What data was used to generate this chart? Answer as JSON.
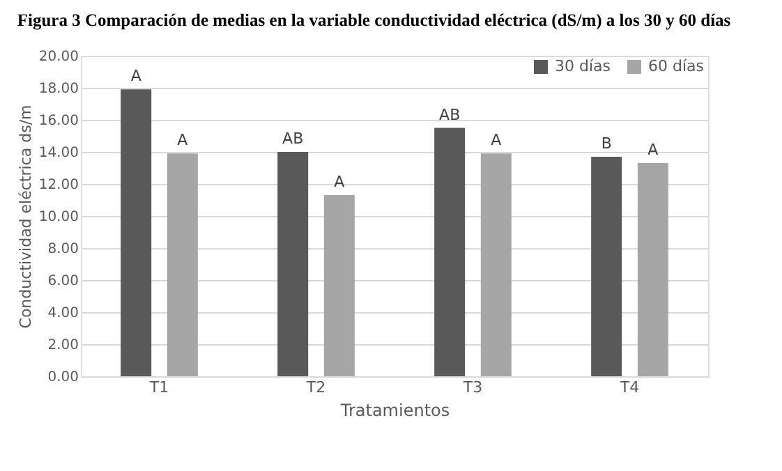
{
  "chart_data": {
    "type": "bar",
    "title": "Figura 3 Comparación de medias en la variable conductividad eléctrica (dS/m) a los 30 y 60 días",
    "xlabel": "Tratamientos",
    "ylabel": "Conductividad eléctrica ds/m",
    "categories": [
      "T1",
      "T2",
      "T3",
      "T4"
    ],
    "series": [
      {
        "name": "30 días",
        "color": "#595959",
        "values": [
          17.9,
          14.0,
          15.5,
          13.7
        ],
        "value_labels": [
          "A",
          "AB",
          "AB",
          "B"
        ]
      },
      {
        "name": "60 días",
        "color": "#a6a6a6",
        "values": [
          13.9,
          11.3,
          13.9,
          13.3
        ],
        "value_labels": [
          "A",
          "A",
          "A",
          "A"
        ]
      }
    ],
    "ylim": [
      0,
      20
    ],
    "yticks": [
      {
        "value": 0,
        "label": "0.00"
      },
      {
        "value": 2,
        "label": "2.00"
      },
      {
        "value": 4,
        "label": "4.00"
      },
      {
        "value": 6,
        "label": "6.00"
      },
      {
        "value": 8,
        "label": "8.00"
      },
      {
        "value": 10,
        "label": "10.00"
      },
      {
        "value": 12,
        "label": "12.00"
      },
      {
        "value": 14,
        "label": "14.00"
      },
      {
        "value": 16,
        "label": "16.00"
      },
      {
        "value": 18,
        "label": "18.00"
      },
      {
        "value": 20,
        "label": "20.00"
      }
    ],
    "grid": "y",
    "legend": "top right"
  }
}
